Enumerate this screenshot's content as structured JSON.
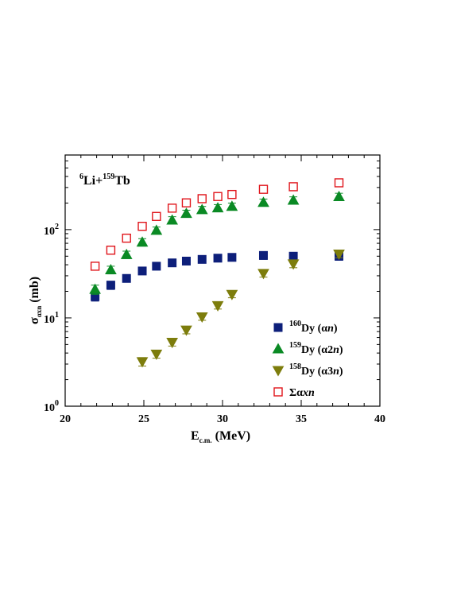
{
  "chart_data": {
    "type": "scatter",
    "x_scale": "linear",
    "y_scale": "log",
    "xlim": [
      20,
      40
    ],
    "ylim": [
      1,
      700
    ],
    "x_ticks": [
      20,
      25,
      30,
      35,
      40
    ],
    "x_tick_labels": [
      "20",
      "25",
      "30",
      "35",
      "40"
    ],
    "y_ticks": [
      1,
      10,
      100
    ],
    "y_tick_labels": [
      "10",
      "10",
      "10"
    ],
    "y_tick_exponents": [
      "0",
      "1",
      "2"
    ],
    "xlabel": {
      "main": "E",
      "sub": "c.m.",
      "unit": " (MeV)"
    },
    "ylabel": {
      "main": "σ",
      "sub": "αxn",
      "unit": " (mb)"
    },
    "annotation": {
      "sup1": "6",
      "mid": "Li+",
      "sup2": "159",
      "end": "Tb"
    },
    "legend_position": "bottom-right",
    "series": [
      {
        "name": {
          "sup": "160",
          "text": "Dy (α",
          "italic": "n",
          "close": ")"
        },
        "marker": "square",
        "color": "#0d1f7a",
        "filled": true,
        "x": [
          21.9,
          22.9,
          23.9,
          24.9,
          25.8,
          26.8,
          27.7,
          28.7,
          29.7,
          30.6,
          32.6,
          34.5,
          37.4
        ],
        "y": [
          17.5,
          23.5,
          28,
          34,
          38.5,
          42,
          44,
          46,
          47.5,
          48.5,
          51,
          50,
          50
        ],
        "err": [
          2.0,
          2.5,
          2.5,
          3.0,
          3.5,
          3.5,
          3.5,
          4.0,
          4.0,
          4.0,
          5.0,
          5.0,
          5.0
        ]
      },
      {
        "name": {
          "sup": "159",
          "text": "Dy (α2",
          "italic": "n",
          "close": ")"
        },
        "marker": "triangle-up",
        "color": "#0a8a24",
        "filled": true,
        "x": [
          21.9,
          22.9,
          23.9,
          24.9,
          25.8,
          26.8,
          27.7,
          28.7,
          29.7,
          30.6,
          32.6,
          34.5,
          37.4
        ],
        "y": [
          21,
          35,
          52,
          72,
          98,
          128,
          152,
          168,
          176,
          183,
          203,
          215,
          236
        ],
        "err": [
          2.5,
          3.5,
          5.0,
          7.0,
          9.0,
          12,
          14,
          15,
          16,
          17,
          19,
          20,
          22
        ]
      },
      {
        "name": {
          "sup": "158",
          "text": "Dy (α3",
          "italic": "n",
          "close": ")"
        },
        "marker": "triangle-down",
        "color": "#7d7d0c",
        "filled": true,
        "x": [
          24.9,
          25.8,
          26.8,
          27.7,
          28.7,
          29.7,
          30.6,
          32.6,
          34.5,
          37.4
        ],
        "y": [
          3.2,
          3.9,
          5.3,
          7.3,
          10.3,
          13.8,
          18.5,
          32,
          41,
          53
        ],
        "err": [
          0.35,
          0.4,
          0.5,
          0.7,
          0.9,
          1.2,
          1.6,
          3.0,
          4.0,
          5.0
        ]
      },
      {
        "name": {
          "sup": "",
          "text": "Σα",
          "italic": "xn",
          "close": ""
        },
        "marker": "square",
        "color": "#e0151b",
        "filled": false,
        "x": [
          21.9,
          22.9,
          23.9,
          24.9,
          25.8,
          26.8,
          27.7,
          28.7,
          29.7,
          30.6,
          32.6,
          34.5,
          37.4
        ],
        "y": [
          38.5,
          58.5,
          80,
          109,
          141,
          175,
          201,
          224,
          237,
          250,
          286,
          306,
          339
        ],
        "err": [
          3.5,
          5.0,
          7.0,
          9.0,
          12,
          15,
          17,
          19,
          20,
          21,
          24,
          26,
          29
        ]
      }
    ]
  }
}
